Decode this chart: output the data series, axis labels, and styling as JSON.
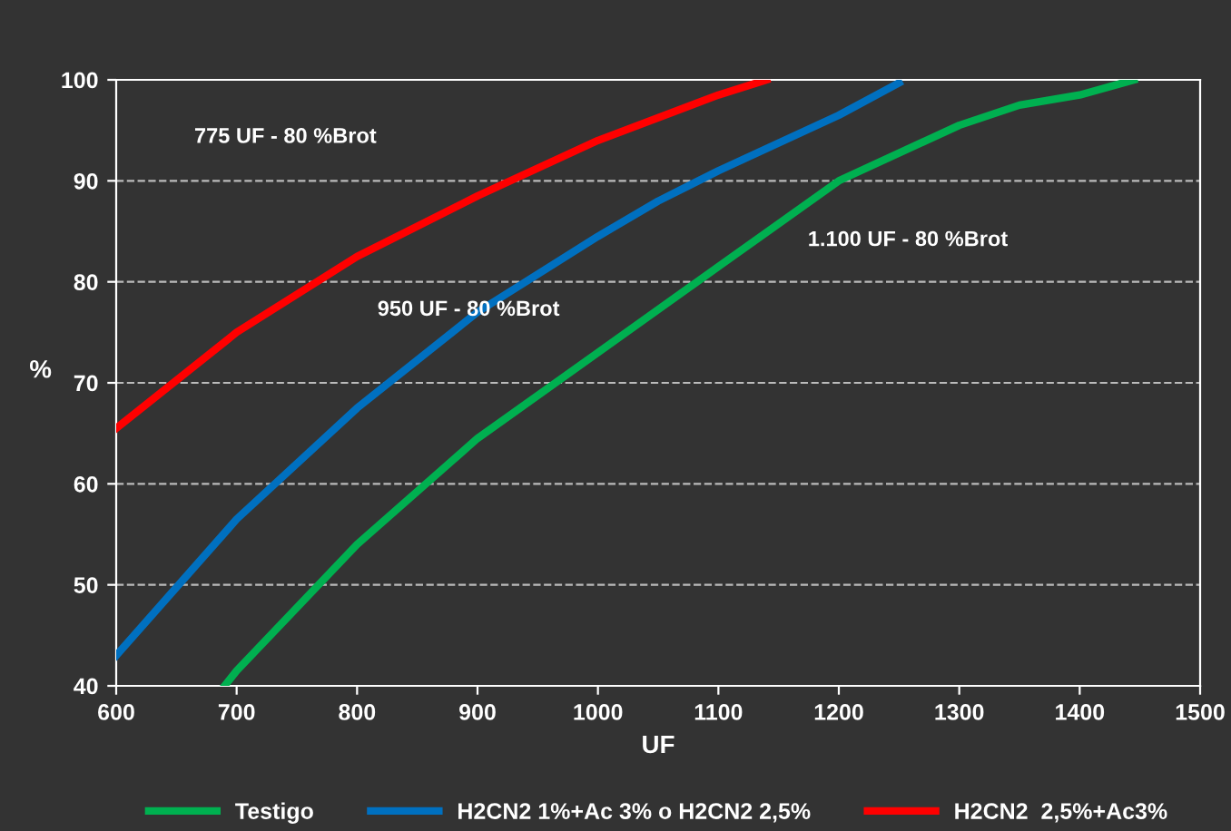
{
  "chart_data": {
    "type": "line",
    "xlabel": "UF",
    "ylabel": "%",
    "xlim": [
      600,
      1500
    ],
    "xticks": [
      600,
      700,
      800,
      900,
      1000,
      1100,
      1200,
      1300,
      1400,
      1500
    ],
    "ylim": [
      40,
      100
    ],
    "yticks": [
      40,
      50,
      60,
      70,
      80,
      90,
      100
    ],
    "grid": "y",
    "legend": "bottom",
    "line_style": "solid",
    "marker": "none",
    "series": [
      {
        "name": "Testigo",
        "color": "#00b050",
        "x": [
          690,
          700,
          800,
          900,
          1000,
          1100,
          1200,
          1300,
          1350,
          1400,
          1445
        ],
        "values": [
          40,
          41.5,
          54,
          64.5,
          73,
          81.5,
          90,
          95.5,
          97.5,
          98.5,
          100
        ]
      },
      {
        "name": "H2CN2 1%+Ac 3% o H2CN2 2,5%",
        "color": "#0070c0",
        "x": [
          600,
          700,
          800,
          900,
          1000,
          1050,
          1100,
          1200,
          1250
        ],
        "values": [
          43,
          56.5,
          67.5,
          77,
          84.5,
          88,
          91,
          96.5,
          99.7
        ]
      },
      {
        "name": "H2CN2  2,5%+Ac3%",
        "color": "#ff0000",
        "x": [
          600,
          700,
          800,
          900,
          1000,
          1100,
          1140
        ],
        "values": [
          65.5,
          75,
          82.5,
          88.5,
          94,
          98.5,
          100
        ]
      }
    ],
    "annotations": [
      "775 UF - 80 %Brot",
      "950 UF - 80 %Brot",
      "1.100 UF - 80 %Brot"
    ]
  }
}
